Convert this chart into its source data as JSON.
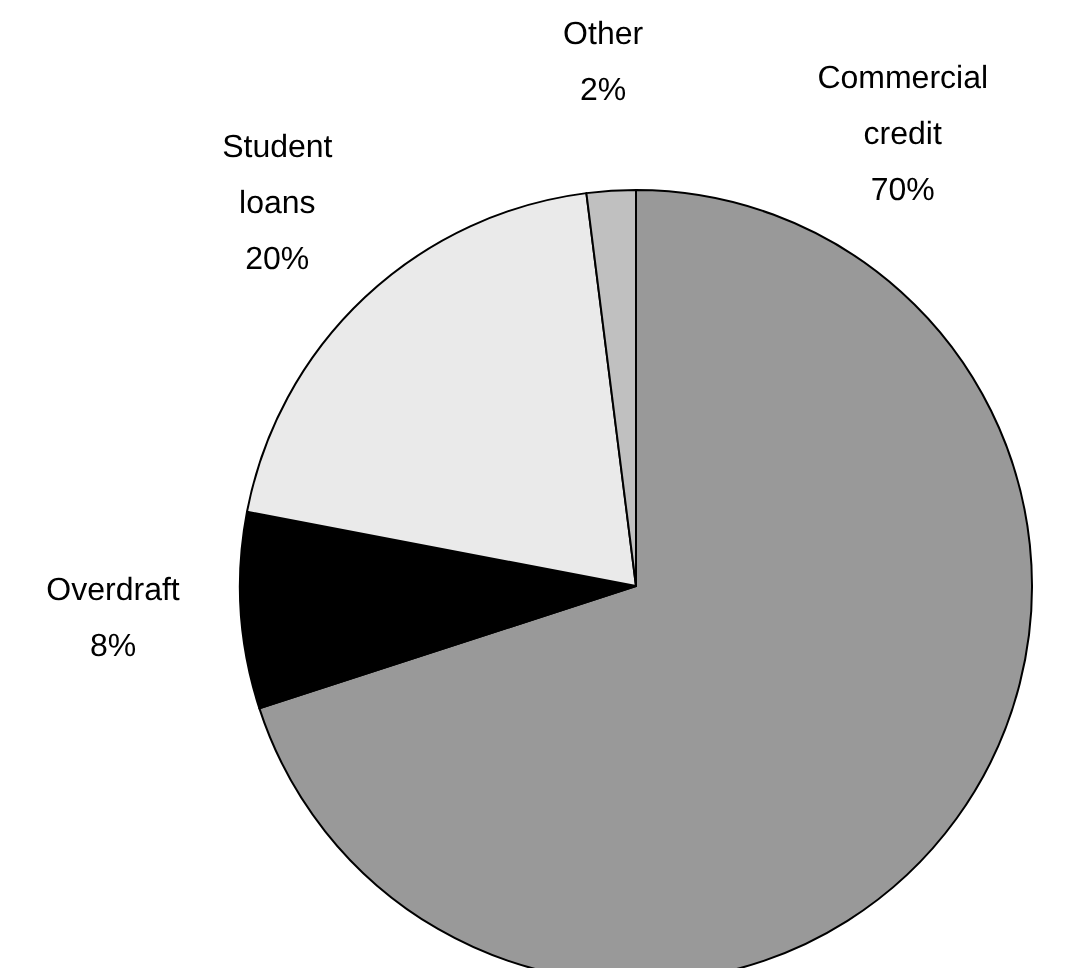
{
  "chart_data": {
    "type": "pie",
    "categories": [
      "Commercial credit",
      "Overdraft",
      "Student loans",
      "Other"
    ],
    "values": [
      70,
      8,
      20,
      2
    ],
    "colors": [
      "#999999",
      "#000000",
      "#eaeaea",
      "#c0c0c0"
    ],
    "value_labels": [
      "70%",
      "8%",
      "20%",
      "2%"
    ],
    "legend": false
  }
}
